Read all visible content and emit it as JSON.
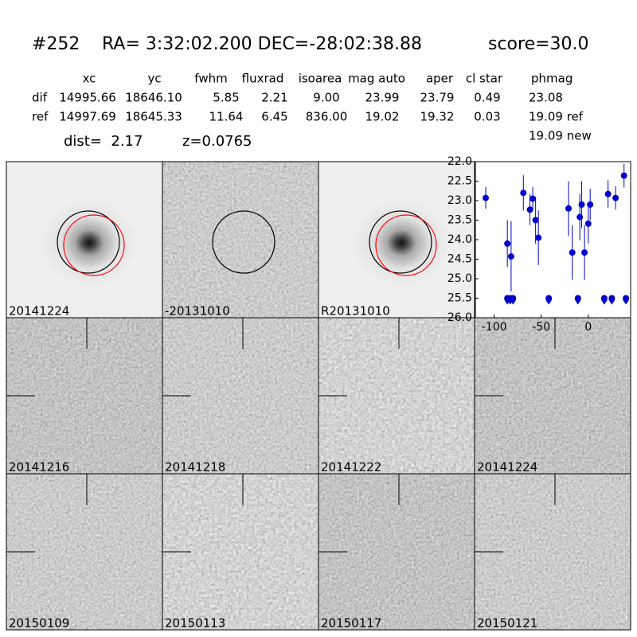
{
  "header": {
    "id": "#252",
    "coords": "RA= 3:32:02.200 DEC=-28:02:38.88",
    "score": "score=30.0"
  },
  "table": {
    "columns": [
      "xc",
      "yc",
      "fwhm",
      "fluxrad",
      "isoarea",
      "mag auto",
      "aper",
      "cl star",
      "phmag"
    ],
    "rows": [
      [
        "dif",
        "14995.66",
        "18646.10",
        "5.85",
        "2.21",
        "9.00",
        "23.99",
        "23.79",
        "0.49",
        "23.08"
      ],
      [
        "ref",
        "14997.69",
        "18645.33",
        "11.64",
        "6.45",
        "836.00",
        "19.02",
        "19.32",
        "0.03",
        "19.09 ref"
      ]
    ]
  },
  "dist": "dist=  2.17",
  "z": "z=0.0765",
  "new_mag": "19.09 new",
  "stamps": [
    {
      "label": "20141224"
    },
    {
      "label": "-20131010"
    },
    {
      "label": "R20131010"
    },
    {
      "label": "20141216"
    },
    {
      "label": "20141218"
    },
    {
      "label": "20141222"
    },
    {
      "label": "20141224",
      "color": "#ff0000"
    },
    {
      "label": "20150109"
    },
    {
      "label": "20150113"
    },
    {
      "label": "20150117"
    },
    {
      "label": "20150121"
    }
  ],
  "light_curve": {
    "type": "scatter",
    "color": "#0000cc",
    "x": [
      -109,
      -86,
      -82,
      -69,
      -62,
      -59,
      -56,
      -53,
      -21,
      -17,
      -9,
      -7,
      -4,
      0,
      2,
      21,
      29,
      38
    ],
    "values": [
      22.93,
      24.1,
      24.43,
      22.8,
      23.23,
      22.95,
      23.5,
      23.95,
      23.2,
      24.33,
      23.42,
      23.1,
      24.33,
      23.59,
      23.1,
      22.83,
      22.93,
      22.36
    ],
    "errors": [
      0.28,
      0.6,
      0.9,
      0.45,
      0.4,
      0.3,
      0.6,
      0.7,
      0.7,
      0.7,
      0.6,
      0.6,
      0.7,
      0.5,
      0.4,
      0.35,
      0.3,
      0.3
    ],
    "limits_x": [
      -86,
      -83,
      -80,
      -42,
      -11,
      17,
      25,
      40
    ],
    "limits_values": [
      25.5,
      25.5,
      25.5,
      25.5,
      25.5,
      25.5,
      25.5,
      25.5
    ],
    "xlim": [
      -120,
      45
    ],
    "ylim": [
      26,
      22
    ],
    "xticks": [
      -100,
      -50,
      0
    ],
    "yticks": [
      {
        "value": 22,
        "label": "22.0"
      },
      {
        "value": 22.5,
        "label": "22.5"
      },
      {
        "value": 23,
        "label": "23.0"
      },
      {
        "value": 23.5,
        "label": "23.5"
      },
      {
        "value": 24,
        "label": "24.0"
      },
      {
        "value": 24.5,
        "label": "24.5"
      },
      {
        "value": 25,
        "label": "25.0"
      },
      {
        "value": 25.5,
        "label": "25.5"
      },
      {
        "value": 26,
        "label": "26.0"
      }
    ]
  }
}
